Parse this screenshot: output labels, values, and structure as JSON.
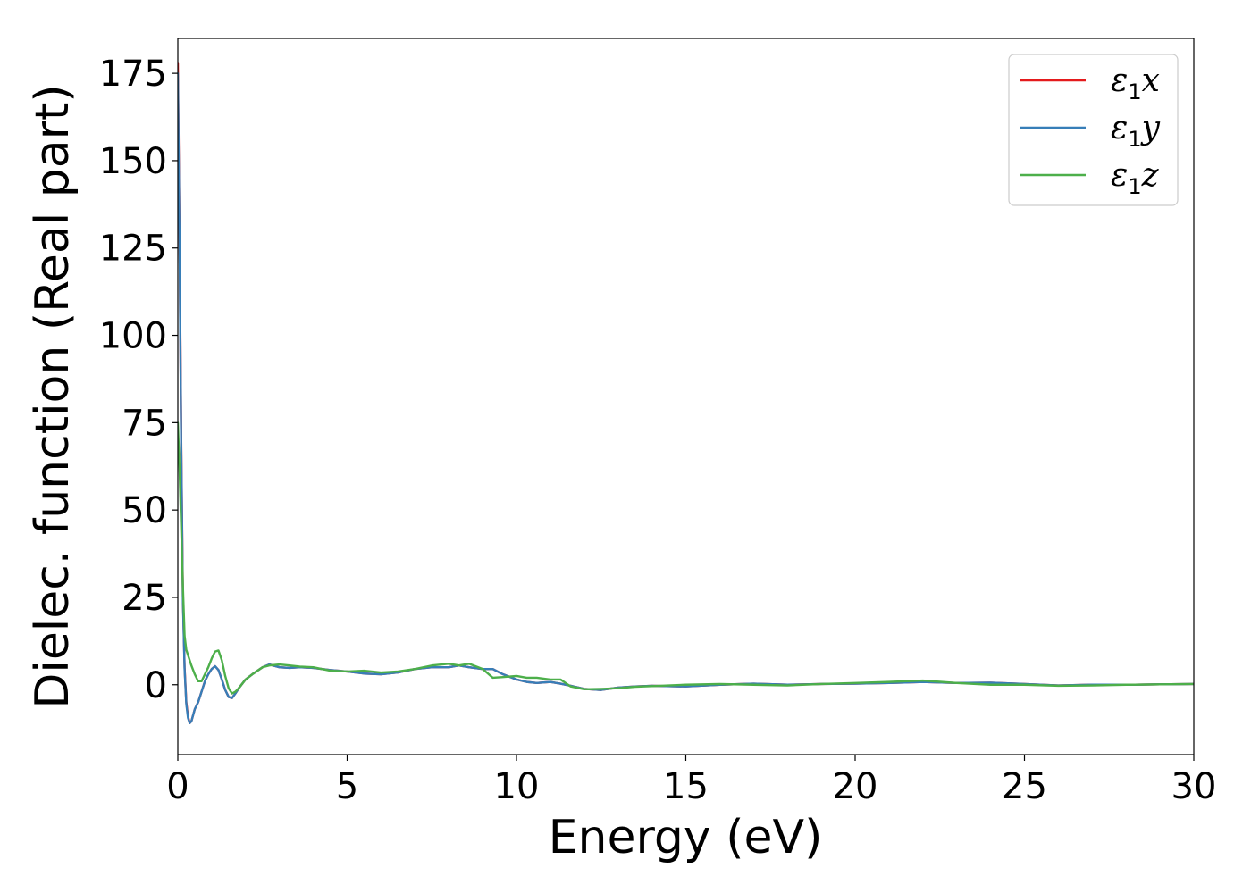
{
  "chart_data": {
    "type": "line",
    "xlabel": "Energy (eV)",
    "ylabel": "Dielec. function (Real part)",
    "xlim": [
      0,
      30
    ],
    "ylim": [
      -20,
      185
    ],
    "xticks": [
      0,
      5,
      10,
      15,
      20,
      25,
      30
    ],
    "xtick_labels": [
      "0",
      "5",
      "10",
      "15",
      "20",
      "25",
      "30"
    ],
    "yticks": [
      0,
      25,
      50,
      75,
      100,
      125,
      150,
      175
    ],
    "ytick_labels": [
      "0",
      "25",
      "50",
      "75",
      "100",
      "125",
      "150",
      "175"
    ],
    "grid": false,
    "legend": "top-right",
    "series": [
      {
        "name": "ε1x",
        "label_main": "ε",
        "label_sub": "1",
        "label_var": "x",
        "color": "#e41a1c",
        "x": [
          0,
          0.05,
          0.1,
          0.15,
          0.2,
          0.25,
          0.3,
          0.35,
          0.4,
          0.5,
          0.6,
          0.7,
          0.8,
          0.9,
          1.0,
          1.1,
          1.2,
          1.3,
          1.4,
          1.5,
          1.6,
          1.7,
          1.8,
          2.0,
          2.2,
          2.5,
          2.7,
          3.0,
          3.3,
          3.6,
          4.0,
          4.5,
          5.0,
          5.5,
          6.0,
          6.5,
          7.0,
          7.5,
          8.0,
          8.3,
          8.6,
          9.0,
          9.3,
          9.6,
          10.0,
          10.3,
          10.6,
          11.0,
          11.3,
          11.6,
          12.0,
          12.5,
          13.0,
          13.5,
          14.0,
          15.0,
          16.0,
          17.0,
          18.0,
          19.0,
          20.0,
          21.0,
          22.0,
          23.0,
          24.0,
          25.0,
          26.0,
          27.0,
          28.0,
          29.0,
          30.0
        ],
        "y": [
          178,
          130,
          70,
          25,
          5,
          -5,
          -9,
          -11,
          -10.5,
          -7,
          -5,
          -2,
          1,
          3,
          4.5,
          5.3,
          4.2,
          1.5,
          -1.5,
          -3.5,
          -3.8,
          -2.5,
          -1,
          1.5,
          3,
          5,
          5.8,
          5,
          4.8,
          5,
          4.8,
          4.2,
          3.8,
          3.2,
          3,
          3.5,
          4.5,
          5,
          5,
          5.5,
          5,
          4.5,
          4.5,
          3,
          1.5,
          0.8,
          0.5,
          0.8,
          0.3,
          -0.3,
          -1.2,
          -1.5,
          -0.8,
          -0.5,
          -0.3,
          -0.5,
          0,
          0.3,
          0,
          0.2,
          0.3,
          0.5,
          0.8,
          0.5,
          0.6,
          0.2,
          -0.2,
          0,
          0,
          0.1,
          0.2
        ]
      },
      {
        "name": "ε1y",
        "label_main": "ε",
        "label_sub": "1",
        "label_var": "y",
        "color": "#377eb8",
        "x": [
          0,
          0.05,
          0.1,
          0.15,
          0.2,
          0.25,
          0.3,
          0.35,
          0.4,
          0.5,
          0.6,
          0.7,
          0.8,
          0.9,
          1.0,
          1.1,
          1.2,
          1.3,
          1.4,
          1.5,
          1.6,
          1.7,
          1.8,
          2.0,
          2.2,
          2.5,
          2.7,
          3.0,
          3.3,
          3.6,
          4.0,
          4.5,
          5.0,
          5.5,
          6.0,
          6.5,
          7.0,
          7.5,
          8.0,
          8.3,
          8.6,
          9.0,
          9.3,
          9.6,
          10.0,
          10.3,
          10.6,
          11.0,
          11.3,
          11.6,
          12.0,
          12.5,
          13.0,
          13.5,
          14.0,
          15.0,
          16.0,
          17.0,
          18.0,
          19.0,
          20.0,
          21.0,
          22.0,
          23.0,
          24.0,
          25.0,
          26.0,
          27.0,
          28.0,
          29.0,
          30.0
        ],
        "y": [
          175,
          128,
          68,
          24,
          4.5,
          -5.5,
          -9.5,
          -11,
          -10.5,
          -7,
          -5,
          -2,
          1,
          3,
          4.5,
          5.3,
          4.2,
          1.5,
          -1.5,
          -3.5,
          -3.8,
          -2.5,
          -1,
          1.5,
          3,
          5,
          5.8,
          5,
          4.8,
          5,
          4.8,
          4.2,
          3.8,
          3.2,
          3,
          3.5,
          4.5,
          5,
          5,
          5.5,
          5,
          4.5,
          4.5,
          3,
          1.5,
          0.8,
          0.5,
          0.8,
          0.3,
          -0.3,
          -1.2,
          -1.5,
          -0.8,
          -0.5,
          -0.3,
          -0.5,
          0,
          0.3,
          0,
          0.2,
          0.3,
          0.5,
          0.8,
          0.5,
          0.6,
          0.2,
          -0.2,
          0,
          0,
          0.1,
          0.2
        ]
      },
      {
        "name": "ε1z",
        "label_main": "ε",
        "label_sub": "1",
        "label_var": "z",
        "color": "#4daf4a",
        "x": [
          0,
          0.05,
          0.1,
          0.15,
          0.2,
          0.25,
          0.3,
          0.35,
          0.4,
          0.5,
          0.6,
          0.7,
          0.8,
          0.9,
          1.0,
          1.1,
          1.2,
          1.3,
          1.4,
          1.5,
          1.6,
          1.7,
          1.8,
          2.0,
          2.2,
          2.5,
          2.7,
          3.0,
          3.3,
          3.6,
          4.0,
          4.5,
          5.0,
          5.5,
          6.0,
          6.5,
          7.0,
          7.5,
          8.0,
          8.3,
          8.6,
          9.0,
          9.3,
          9.6,
          10.0,
          10.3,
          10.6,
          11.0,
          11.3,
          11.6,
          12.0,
          12.5,
          13.0,
          13.5,
          14.0,
          15.0,
          16.0,
          17.0,
          18.0,
          19.0,
          20.0,
          21.0,
          22.0,
          23.0,
          24.0,
          25.0,
          26.0,
          27.0,
          28.0,
          29.0,
          30.0
        ],
        "y": [
          75,
          62,
          45,
          28,
          14,
          10,
          8.5,
          7,
          5.5,
          3,
          1,
          1,
          3,
          5,
          7.5,
          9.5,
          9.8,
          7,
          2.5,
          -1,
          -2.5,
          -2,
          -1,
          1.5,
          3,
          5,
          5.5,
          5.8,
          5.5,
          5.2,
          5,
          4,
          3.8,
          4,
          3.5,
          3.8,
          4.5,
          5.5,
          6,
          5.5,
          6,
          4.5,
          2,
          2.2,
          2.5,
          2,
          2,
          1.5,
          1.5,
          -0.5,
          -1.3,
          -1.2,
          -1,
          -0.6,
          -0.4,
          0,
          0.2,
          0,
          -0.2,
          0.2,
          0.5,
          0.8,
          1.2,
          0.5,
          0,
          0,
          -0.3,
          -0.2,
          0,
          0.1,
          0.2
        ]
      }
    ]
  }
}
